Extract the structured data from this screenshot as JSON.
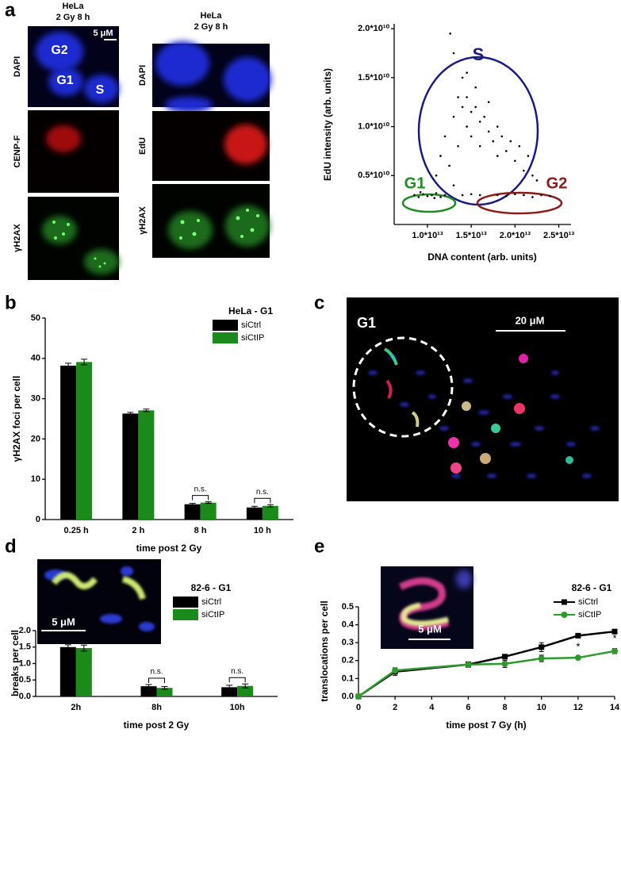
{
  "panel_labels": [
    "a",
    "b",
    "c",
    "d",
    "e"
  ],
  "images": {
    "a_left": {
      "header": [
        "HeLa",
        "2 Gy 8 h"
      ],
      "scale": "5 μM",
      "cell_labels": [
        "G2",
        "G1",
        "S"
      ],
      "channels": [
        "DAPI",
        "CENP-F",
        "γH2AX"
      ]
    },
    "a_mid": {
      "header": [
        "HeLa",
        "2 Gy 8 h"
      ],
      "channels": [
        "DAPI",
        "EdU",
        "γH2AX"
      ]
    },
    "c": {
      "label": "G1",
      "scale": "20 μM"
    },
    "d": {
      "scale": "5 μM"
    },
    "e": {
      "scale": "5 μM"
    }
  },
  "chart_data": [
    {
      "type": "scatter",
      "xlabel": "DNA content (arb. units)",
      "ylabel": "EdU intensity (arb. units)",
      "color": "#000000",
      "x": [
        8500000000000.0,
        9000000000000.0,
        9500000000000.0,
        10000000000000.0,
        10500000000000.0,
        11000000000000.0,
        11500000000000.0,
        12000000000000.0,
        9200000000000.0,
        10800000000000.0,
        11000000000000.0,
        11500000000000.0,
        12000000000000.0,
        12500000000000.0,
        13000000000000.0,
        13000000000000.0,
        13500000000000.0,
        13500000000000.0,
        14000000000000.0,
        14000000000000.0,
        14500000000000.0,
        14500000000000.0,
        15000000000000.0,
        15000000000000.0,
        15500000000000.0,
        15500000000000.0,
        16000000000000.0,
        16000000000000.0,
        16500000000000.0,
        17000000000000.0,
        17000000000000.0,
        17500000000000.0,
        18000000000000.0,
        18000000000000.0,
        18500000000000.0,
        19000000000000.0,
        19500000000000.0,
        20000000000000.0,
        20500000000000.0,
        21000000000000.0,
        21500000000000.0,
        22000000000000.0,
        22500000000000.0,
        13000000000000.0,
        14500000000000.0,
        12600000000000.0,
        18000000000000.0,
        19000000000000.0,
        20000000000000.0,
        21000000000000.0,
        22000000000000.0,
        23000000000000.0,
        24000000000000.0,
        16000000000000.0,
        15000000000000.0,
        14000000000000.0
      ],
      "values": [
        3000000000.0,
        2800000000.0,
        3100000000.0,
        2900000000.0,
        3000000000.0,
        3200000000.0,
        2800000000.0,
        3000000000.0,
        3300000000.0,
        2700000000.0,
        5000000000.0,
        7000000000.0,
        9000000000.0,
        6000000000.0,
        11000000000.0,
        4000000000.0,
        13000000000.0,
        8000000000.0,
        12000000000.0,
        15000000000.0,
        10000000000.0,
        13000000000.0,
        11500000000.0,
        9000000000.0,
        12000000000.0,
        14000000000.0,
        10500000000.0,
        8000000000.0,
        11000000000.0,
        9500000000.0,
        12500000000.0,
        8500000000.0,
        10000000000.0,
        7000000000.0,
        9000000000.0,
        7500000000.0,
        8500000000.0,
        6500000000.0,
        8000000000.0,
        5500000000.0,
        7000000000.0,
        5000000000.0,
        4500000000.0,
        17500000000.0,
        15500000000.0,
        19500000000.0,
        3000000000.0,
        2900000000.0,
        3100000000.0,
        3000000000.0,
        2800000000.0,
        3000000000.0,
        2900000000.0,
        3000000000.0,
        3100000000.0,
        3000000000.0
      ],
      "xlim": [
        6200000000000.0,
        26400000000000.0
      ],
      "ylim": [
        0,
        20500000000.0
      ],
      "xticks": [
        {
          "value": 10000000000000.0,
          "label": "1.0*10¹³"
        },
        {
          "value": 15000000000000.0,
          "label": "1.5*10¹³"
        },
        {
          "value": 20000000000000.0,
          "label": "2.0*10¹³"
        },
        {
          "value": 25000000000000.0,
          "label": "2.5*10¹³"
        }
      ],
      "yticks": [
        {
          "value": 5000000000.0,
          "label": "0.5*10¹⁰"
        },
        {
          "value": 10000000000.0,
          "label": "1.0*10¹⁰"
        },
        {
          "value": 15000000000.0,
          "label": "1.5*10¹⁰"
        },
        {
          "value": 20000000000.0,
          "label": "2.0*10¹⁰"
        }
      ],
      "annotations": [
        {
          "text": "S",
          "color": "#1a1a80"
        },
        {
          "text": "G1",
          "color": "#1e8c1e"
        },
        {
          "text": "G2",
          "color": "#8c1a1a"
        }
      ]
    },
    {
      "type": "bar",
      "xlabel": "time post 2 Gy",
      "ylabel": "γH2AX foci per cell",
      "legend_title": "HeLa - G1",
      "categories": [
        "0.25 h",
        "2 h",
        "8 h",
        "10 h"
      ],
      "series": [
        {
          "name": "siCtrl",
          "color": "#000000",
          "values": [
            38.2,
            26.3,
            3.8,
            3.0
          ],
          "errors": [
            0.6,
            0.3,
            0.2,
            0.3
          ]
        },
        {
          "name": "siCtIP",
          "color": "#1a8a1a",
          "values": [
            39.1,
            27.1,
            4.2,
            3.4
          ],
          "errors": [
            0.7,
            0.3,
            0.2,
            0.3
          ]
        }
      ],
      "significance": [
        null,
        null,
        "n.s.",
        "n.s."
      ],
      "ylim": [
        0,
        50
      ],
      "yticks": [
        0,
        10,
        20,
        30,
        40,
        50
      ]
    },
    {
      "type": "bar",
      "xlabel": "time post 2 Gy",
      "ylabel": "breaks per cell",
      "legend_title": "82-6 - G1",
      "categories": [
        "2h",
        "8h",
        "10h"
      ],
      "series": [
        {
          "name": "siCtrl",
          "color": "#000000",
          "values": [
            1.5,
            0.31,
            0.28
          ],
          "errors": [
            0.07,
            0.05,
            0.06
          ]
        },
        {
          "name": "siCtIP",
          "color": "#1a8a1a",
          "values": [
            1.47,
            0.26,
            0.32
          ],
          "errors": [
            0.09,
            0.04,
            0.06
          ]
        }
      ],
      "significance": [
        null,
        "n.s.",
        "n.s."
      ],
      "ylim": [
        0,
        2.0
      ],
      "yticks": [
        {
          "value": 0,
          "label": "0.0"
        },
        0.5,
        {
          "value": 1,
          "label": "1.0"
        },
        1.5,
        {
          "value": 2,
          "label": "2.0"
        }
      ]
    },
    {
      "type": "line",
      "xlabel": "time post 7 Gy (h)",
      "ylabel": "translocations per cell",
      "legend_title": "82-6 - G1",
      "x": [
        0,
        2,
        6,
        8,
        10,
        12,
        14
      ],
      "series": [
        {
          "name": "siCtrl",
          "color": "#000000",
          "marker": "square",
          "values": [
            0,
            0.138,
            0.178,
            0.222,
            0.275,
            0.339,
            0.362
          ],
          "errors": [
            0,
            0.02,
            0.015,
            0.012,
            0.025,
            0.004,
            0.01
          ]
        },
        {
          "name": "siCtIP",
          "color": "#2e9a2e",
          "marker": "circle",
          "values": [
            0,
            0.145,
            0.178,
            0.182,
            0.212,
            0.216,
            0.253
          ],
          "errors": [
            0,
            0.015,
            0.015,
            0.02,
            0.018,
            0.005,
            0.014
          ]
        }
      ],
      "significance": [
        null,
        null,
        null,
        null,
        null,
        "*",
        "*"
      ],
      "xlim": [
        0,
        14
      ],
      "ylim": [
        0,
        0.5
      ],
      "xticks": [
        0,
        2,
        4,
        6,
        8,
        10,
        12,
        14
      ],
      "yticks": [
        {
          "value": 0,
          "label": "0.0"
        },
        0.1,
        0.2,
        0.3,
        0.4,
        0.5
      ]
    }
  ]
}
